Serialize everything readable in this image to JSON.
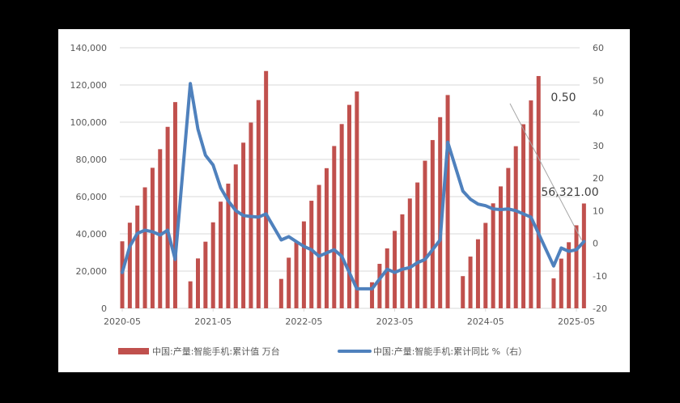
{
  "chart_data": {
    "type": "bar+line",
    "title": "",
    "x_tick_labels": [
      "2020-05",
      "2021-05",
      "2022-05",
      "2023-05",
      "2024-05",
      "2025-05"
    ],
    "y_left": {
      "ticks": [
        "0",
        "20,000",
        "40,000",
        "60,000",
        "80,000",
        "100,000",
        "120,000",
        "140,000"
      ],
      "range": [
        0,
        140000
      ]
    },
    "y_right": {
      "ticks": [
        "-20",
        "-10",
        "0",
        "10",
        "20",
        "30",
        "40",
        "50",
        "60"
      ],
      "range": [
        -20,
        60
      ]
    },
    "grid": true,
    "legend_position": "bottom",
    "series": [
      {
        "name": "中国:产量:智能手机:累计值",
        "unit": "万台",
        "type": "bar",
        "axis": "left",
        "color": "#C0504D",
        "points": [
          [
            "2020-05",
            36000
          ],
          [
            "2020-06",
            46000
          ],
          [
            "2020-07",
            55200
          ],
          [
            "2020-08",
            65000
          ],
          [
            "2020-09",
            75500
          ],
          [
            "2020-10",
            85500
          ],
          [
            "2020-11",
            97500
          ],
          [
            "2020-12",
            110800
          ],
          [
            "2021-02",
            14500
          ],
          [
            "2021-03",
            26800
          ],
          [
            "2021-04",
            35800
          ],
          [
            "2021-05",
            46200
          ],
          [
            "2021-06",
            57300
          ],
          [
            "2021-07",
            67000
          ],
          [
            "2021-08",
            77300
          ],
          [
            "2021-09",
            89000
          ],
          [
            "2021-10",
            99800
          ],
          [
            "2021-11",
            111900
          ],
          [
            "2021-12",
            127500
          ],
          [
            "2022-02",
            15800
          ],
          [
            "2022-03",
            27200
          ],
          [
            "2022-04",
            36000
          ],
          [
            "2022-05",
            46700
          ],
          [
            "2022-06",
            57800
          ],
          [
            "2022-07",
            66300
          ],
          [
            "2022-08",
            75300
          ],
          [
            "2022-09",
            87200
          ],
          [
            "2022-10",
            99000
          ],
          [
            "2022-11",
            109300
          ],
          [
            "2022-12",
            116500
          ],
          [
            "2023-02",
            14000
          ],
          [
            "2023-03",
            23900
          ],
          [
            "2023-04",
            32200
          ],
          [
            "2023-05",
            41600
          ],
          [
            "2023-06",
            50500
          ],
          [
            "2023-07",
            59000
          ],
          [
            "2023-08",
            67600
          ],
          [
            "2023-09",
            79300
          ],
          [
            "2023-10",
            90400
          ],
          [
            "2023-11",
            102700
          ],
          [
            "2023-12",
            114600
          ],
          [
            "2024-02",
            17300
          ],
          [
            "2024-03",
            27800
          ],
          [
            "2024-04",
            37100
          ],
          [
            "2024-05",
            45900
          ],
          [
            "2024-06",
            56400
          ],
          [
            "2024-07",
            65500
          ],
          [
            "2024-08",
            75400
          ],
          [
            "2024-09",
            87100
          ],
          [
            "2024-10",
            98900
          ],
          [
            "2024-11",
            111700
          ],
          [
            "2024-12",
            124800
          ],
          [
            "2025-02",
            16100
          ],
          [
            "2025-03",
            26700
          ],
          [
            "2025-04",
            35500
          ],
          [
            "2025-05",
            44600
          ],
          [
            "2025-06",
            56321
          ]
        ]
      },
      {
        "name": "中国:产量:智能手机:累计同比",
        "unit": "%（右）",
        "type": "line",
        "axis": "right",
        "color": "#4F81BD",
        "points": [
          [
            "2020-05",
            -9
          ],
          [
            "2020-06",
            -1
          ],
          [
            "2020-07",
            3
          ],
          [
            "2020-08",
            4
          ],
          [
            "2020-09",
            3.5
          ],
          [
            "2020-10",
            2.5
          ],
          [
            "2020-11",
            4
          ],
          [
            "2020-12",
            -5
          ],
          [
            "2021-02",
            49
          ],
          [
            "2021-03",
            35
          ],
          [
            "2021-04",
            27
          ],
          [
            "2021-05",
            24
          ],
          [
            "2021-06",
            17
          ],
          [
            "2021-07",
            13
          ],
          [
            "2021-08",
            10
          ],
          [
            "2021-09",
            8.5
          ],
          [
            "2021-10",
            8.2
          ],
          [
            "2021-11",
            8
          ],
          [
            "2021-12",
            9
          ],
          [
            "2022-02",
            1
          ],
          [
            "2022-03",
            2
          ],
          [
            "2022-04",
            0.5
          ],
          [
            "2022-05",
            -1
          ],
          [
            "2022-06",
            -2
          ],
          [
            "2022-07",
            -4
          ],
          [
            "2022-08",
            -3
          ],
          [
            "2022-09",
            -2
          ],
          [
            "2022-10",
            -4
          ],
          [
            "2022-11",
            -9
          ],
          [
            "2022-12",
            -14
          ],
          [
            "2023-02",
            -14
          ],
          [
            "2023-03",
            -11
          ],
          [
            "2023-04",
            -8
          ],
          [
            "2023-05",
            -9
          ],
          [
            "2023-06",
            -8
          ],
          [
            "2023-07",
            -7.5
          ],
          [
            "2023-08",
            -6
          ],
          [
            "2023-09",
            -5
          ],
          [
            "2023-10",
            -2
          ],
          [
            "2023-11",
            1
          ],
          [
            "2023-12",
            31
          ],
          [
            "2024-02",
            16
          ],
          [
            "2024-03",
            13.5
          ],
          [
            "2024-04",
            12
          ],
          [
            "2024-05",
            11.5
          ],
          [
            "2024-06",
            10.5
          ],
          [
            "2024-07",
            10.3
          ],
          [
            "2024-08",
            10.5
          ],
          [
            "2024-09",
            10
          ],
          [
            "2024-10",
            9
          ],
          [
            "2024-11",
            8
          ],
          [
            "2025-02",
            -7
          ],
          [
            "2025-03",
            -1.5
          ],
          [
            "2025-04",
            -2.5
          ],
          [
            "2025-05",
            -2
          ],
          [
            "2025-06",
            0.5
          ]
        ]
      }
    ],
    "annotations": [
      {
        "text": "0.50",
        "target": "line last point"
      },
      {
        "text": "56,321.00",
        "target": "bar last point"
      }
    ]
  },
  "legend": {
    "bar_label": "中国:产量:智能手机:累计值   万台",
    "line_label": "中国:产量:智能手机:累计同比   %（右）"
  },
  "annotations": {
    "line_value": "0.50",
    "bar_value": "56,321.00"
  }
}
